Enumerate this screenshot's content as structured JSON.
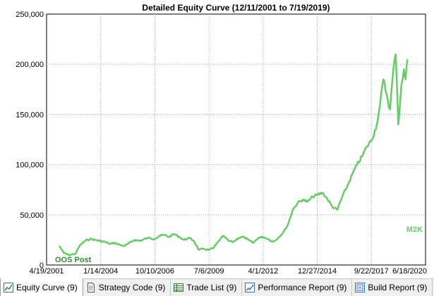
{
  "chart_data": {
    "type": "line",
    "title": "Detailed Equity Curve (12/11/2001 to 7/19/2019)",
    "xlabel": "",
    "ylabel": "",
    "xlim": [
      "4/19/2001",
      "6/18/2020"
    ],
    "ylim": [
      0,
      250000
    ],
    "x_ticks": [
      "4/19/2001",
      "1/14/2004",
      "10/10/2006",
      "7/6/2009",
      "4/1/2012",
      "12/27/2014",
      "9/22/2017",
      "6/18/2020"
    ],
    "y_ticks": [
      "0",
      "50,000",
      "100,000",
      "150,000",
      "200,000",
      "250,000"
    ],
    "y_tick_values": [
      0,
      50000,
      100000,
      150000,
      200000,
      250000
    ],
    "grid": true,
    "line_color": "#66cc66",
    "annotations": [
      {
        "text": "OOS Post",
        "color": "#2e8b2e",
        "position": "bottom-left"
      },
      {
        "text": "M2K",
        "color": "#66cc66",
        "position": "bottom-right"
      }
    ],
    "series": [
      {
        "x": [
          "12/11/2001",
          "3/1/2002",
          "6/1/2002",
          "10/1/2002",
          "1/1/2003",
          "4/1/2003",
          "7/1/2003",
          "10/1/2003",
          "1/1/2004",
          "4/1/2004",
          "7/1/2004",
          "10/1/2004",
          "1/1/2005",
          "4/1/2005",
          "7/1/2005",
          "10/1/2005",
          "1/1/2006",
          "6/1/2006",
          "10/1/2006",
          "1/1/2007",
          "4/1/2007",
          "7/1/2007",
          "10/1/2007",
          "1/1/2008",
          "4/1/2008",
          "7/1/2008",
          "10/1/2008",
          "1/1/2009",
          "4/1/2009",
          "7/1/2009",
          "10/1/2009",
          "1/1/2010",
          "4/1/2010",
          "7/1/2010",
          "10/1/2010",
          "1/1/2011",
          "4/1/2011",
          "7/1/2011",
          "10/1/2011",
          "1/1/2012",
          "4/1/2012",
          "7/1/2012",
          "10/1/2012",
          "1/1/2013",
          "4/1/2013",
          "7/1/2013",
          "10/1/2013",
          "1/1/2014",
          "4/1/2014",
          "7/1/2014",
          "10/1/2014",
          "1/1/2015",
          "4/1/2015",
          "7/1/2015",
          "10/1/2015",
          "1/1/2016",
          "4/1/2016",
          "7/1/2016",
          "10/1/2016",
          "1/1/2017",
          "4/1/2017",
          "7/1/2017",
          "10/1/2017",
          "1/1/2018",
          "3/1/2018",
          "5/1/2018",
          "7/1/2018",
          "9/1/2018",
          "11/1/2018",
          "12/15/2018",
          "2/1/2019",
          "4/1/2019",
          "5/15/2019",
          "6/15/2019",
          "7/19/2019"
        ],
        "values": [
          19000,
          12000,
          10000,
          11000,
          20000,
          24000,
          26000,
          25000,
          24000,
          23000,
          21000,
          22000,
          20000,
          19000,
          22000,
          25000,
          24000,
          27000,
          26000,
          29000,
          30000,
          28000,
          31000,
          28000,
          25000,
          27000,
          24000,
          15000,
          16000,
          15000,
          17000,
          24000,
          29000,
          24000,
          23000,
          27000,
          28000,
          25000,
          22000,
          27000,
          28000,
          26000,
          23000,
          27000,
          32000,
          40000,
          55000,
          62000,
          65000,
          63000,
          68000,
          70000,
          72000,
          66000,
          58000,
          55000,
          68000,
          78000,
          90000,
          100000,
          108000,
          118000,
          125000,
          140000,
          160000,
          185000,
          170000,
          155000,
          195000,
          210000,
          140000,
          180000,
          195000,
          185000,
          205000
        ]
      }
    ]
  },
  "tabs": [
    {
      "label": "Equity Curve (9)",
      "icon": "equity-curve-icon"
    },
    {
      "label": "Strategy Code (9)",
      "icon": "strategy-code-icon"
    },
    {
      "label": "Trade List (9)",
      "icon": "trade-list-icon"
    },
    {
      "label": "Performance Report (9)",
      "icon": "performance-report-icon"
    },
    {
      "label": "Build Report (9)",
      "icon": "build-report-icon"
    }
  ]
}
